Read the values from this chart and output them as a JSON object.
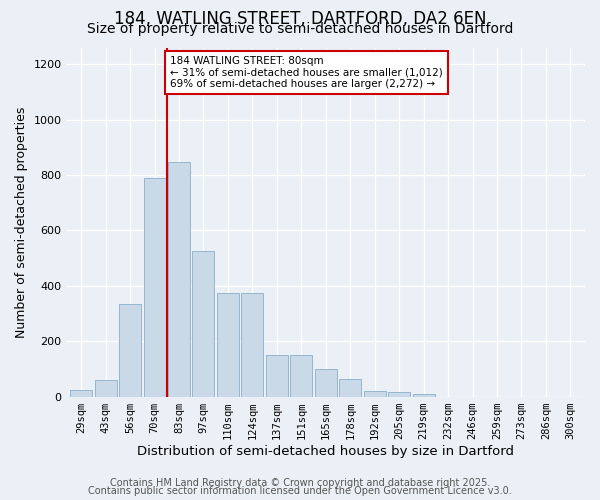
{
  "title_line1": "184, WATLING STREET, DARTFORD, DA2 6EN",
  "title_line2": "Size of property relative to semi-detached houses in Dartford",
  "xlabel": "Distribution of semi-detached houses by size in Dartford",
  "ylabel": "Number of semi-detached properties",
  "bar_labels": [
    "29sqm",
    "43sqm",
    "56sqm",
    "70sqm",
    "83sqm",
    "97sqm",
    "110sqm",
    "124sqm",
    "137sqm",
    "151sqm",
    "165sqm",
    "178sqm",
    "192sqm",
    "205sqm",
    "219sqm",
    "232sqm",
    "246sqm",
    "259sqm",
    "273sqm",
    "286sqm",
    "300sqm"
  ],
  "bar_values": [
    25,
    60,
    335,
    790,
    845,
    525,
    375,
    375,
    150,
    150,
    100,
    65,
    20,
    15,
    10,
    0,
    0,
    0,
    0,
    0,
    0
  ],
  "bar_color": "#c9d9e8",
  "bar_edgecolor": "#8aafc8",
  "vline_color": "#cc0000",
  "annotation_title": "184 WATLING STREET: 80sqm",
  "annotation_line1": "← 31% of semi-detached houses are smaller (1,012)",
  "annotation_line2": "69% of semi-detached houses are larger (2,272) →",
  "property_bin_index": 4,
  "ylim": [
    0,
    1260
  ],
  "yticks": [
    0,
    200,
    400,
    600,
    800,
    1000,
    1200
  ],
  "footer_line1": "Contains HM Land Registry data © Crown copyright and database right 2025.",
  "footer_line2": "Contains public sector information licensed under the Open Government Licence v3.0.",
  "bg_color": "#eaf0f6",
  "grid_color": "#ffffff",
  "title_fontsize": 12,
  "subtitle_fontsize": 10,
  "axis_label_fontsize": 9,
  "tick_fontsize": 7.5,
  "footer_fontsize": 7
}
